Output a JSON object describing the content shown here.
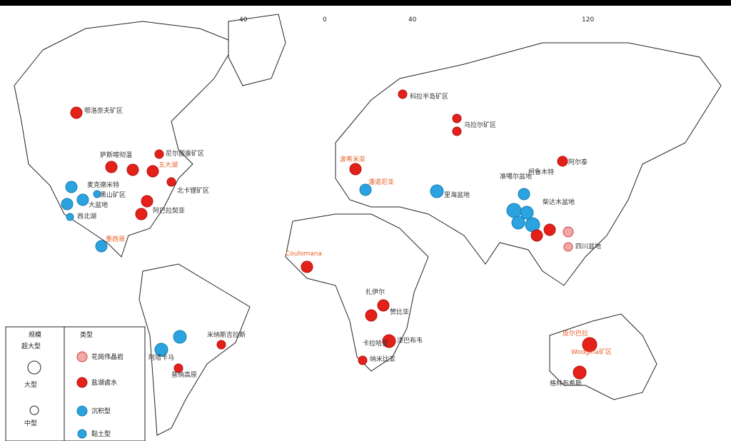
{
  "map": {
    "longitude_labels": [
      "40",
      "0",
      "40",
      "120"
    ],
    "deposits": [
      "鄂洛奈夫矿区",
      "尼尔图雷矿区",
      "五大湖",
      "萨斯喀彻温",
      "麦克德米特",
      "黑山矿区",
      "大盆地",
      "西北湖",
      "北卡锂矿区",
      "阿巴拉契亚",
      "墨西哥",
      "科拉半岛矿区",
      "乌拉尔矿区",
      "波希米亚",
      "潘诺尼亚",
      "里海盆地",
      "准噶尔盆地",
      "柯鲁木特",
      "阿尔泰",
      "柴达木盆地",
      "四川盆地",
      "Coulomana",
      "扎伊尔",
      "赞比亚",
      "津巴布韦",
      "卡拉哈里",
      "纳米比亚",
      "米纳斯吉拉斯",
      "阿塔卡马",
      "普纳高原",
      "皮尔巴拉",
      "Wodgina矿区",
      "格林布希斯"
    ],
    "legend": {
      "size_title": "规模",
      "sizes": [
        "超大型",
        "大型",
        "中型"
      ],
      "type_title": "类型",
      "types": [
        "花岗伟晶岩",
        "盐湖卤水",
        "沉积型",
        "黏土型"
      ]
    }
  }
}
